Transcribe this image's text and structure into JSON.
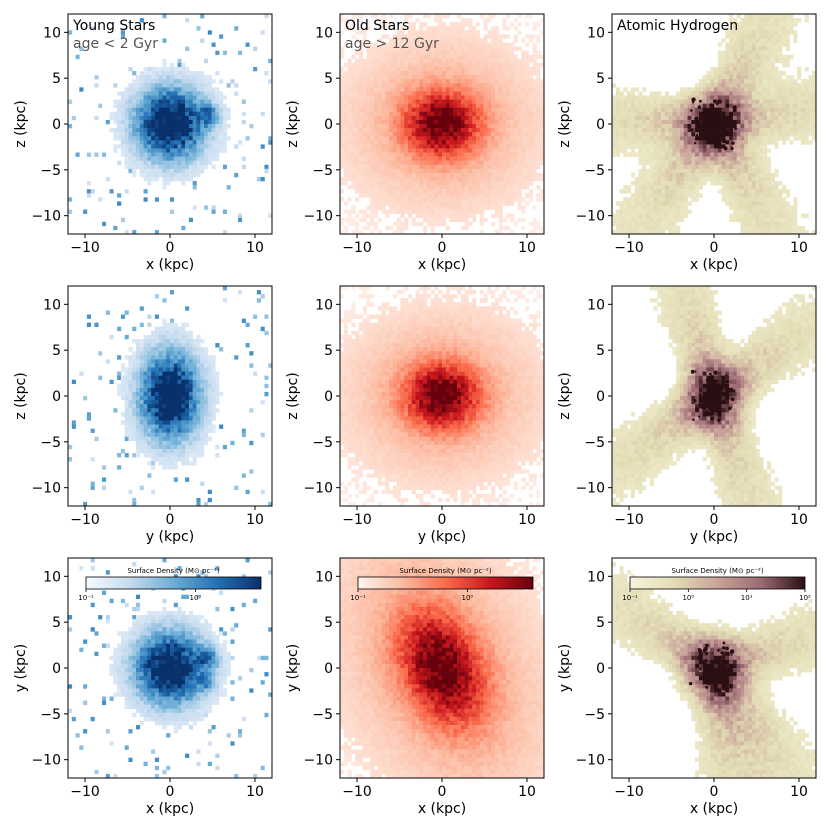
{
  "chart_data": {
    "type": "heatmap",
    "layout": "3x3 grid of 2D surface density maps",
    "axis_ranges": {
      "x": [
        -12,
        12
      ],
      "y": [
        -12,
        12
      ]
    },
    "ticks": [
      -10,
      -5,
      0,
      5,
      10
    ],
    "rows": [
      {
        "xlabel": "x (kpc)",
        "ylabel": "z (kpc)",
        "x_ticks": [
          -10,
          0,
          10
        ],
        "y_ticks": [
          -10,
          -5,
          0,
          5,
          10
        ]
      },
      {
        "xlabel": "y (kpc)",
        "ylabel": "z (kpc)",
        "x_ticks": [
          -10,
          0,
          10
        ],
        "y_ticks": [
          -10,
          -5,
          0,
          5,
          10
        ]
      },
      {
        "xlabel": "x (kpc)",
        "ylabel": "y (kpc)",
        "x_ticks": [
          -10,
          0,
          10
        ],
        "y_ticks": [
          -10,
          -5,
          0,
          5,
          10
        ]
      }
    ],
    "columns": [
      {
        "title": "Young Stars",
        "subtitle": "age < 2 Gyr",
        "colormap": "Blues",
        "colors": [
          "#f7fbff",
          "#c6dbef",
          "#6baed6",
          "#2171b5",
          "#08306b"
        ],
        "colorbar": {
          "label": "Surface Density (M⊙ pc⁻²)",
          "tick_labels": [
            "10⁻¹",
            "10⁰"
          ],
          "range_log10": [
            -1,
            0.6
          ]
        },
        "morphology": "compact dense core, sparse clumpy outskirts, spiral fragment in face-on view"
      },
      {
        "title": "Old Stars",
        "subtitle": "age > 12 Gyr",
        "colormap": "Reds",
        "colors": [
          "#fff5f0",
          "#fcbba1",
          "#fb6a4a",
          "#cb181d",
          "#67000d"
        ],
        "colorbar": {
          "label": "Surface Density (M⊙ pc⁻²)",
          "tick_labels": [
            "10⁻¹",
            "10⁰"
          ],
          "range_log10": [
            -1,
            0.6
          ]
        },
        "morphology": "smooth extended spheroid, elongated in face-on view"
      },
      {
        "title": "Atomic Hydrogen",
        "subtitle": "",
        "colormap": "Pink_r",
        "colors": [
          "#f6f3da",
          "#e3ddb5",
          "#c9a39a",
          "#9c6a73",
          "#2a0f12"
        ],
        "colorbar": {
          "label": "Surface Density (M⊙ pc⁻²)",
          "tick_labels": [
            "10⁻¹",
            "10⁰",
            "10¹",
            "10²"
          ],
          "range_log10": [
            -1,
            2
          ]
        },
        "morphology": "filamentary streams extending beyond 10 kpc with a dense clumpy center"
      }
    ]
  }
}
